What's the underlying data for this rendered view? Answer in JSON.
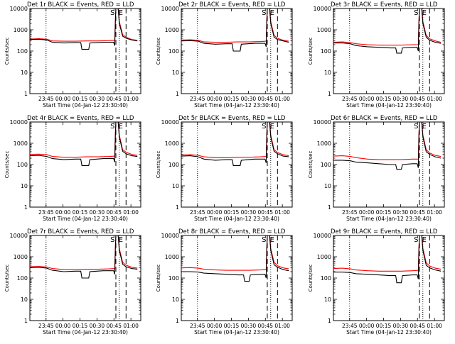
{
  "figure": {
    "xlabel": "Start Time (04-Jan-12 23:30:40)",
    "ylabel": "Counts/sec",
    "ytick_labels": [
      "1",
      "10",
      "100",
      "1000",
      "10000"
    ],
    "xtick_labels": [
      "23:45",
      "00:00",
      "00:15",
      "00:30",
      "00:45",
      "01:00"
    ],
    "colors": {
      "events": "#000000",
      "lld": "#ff0000",
      "axes": "#000000",
      "background": "#ffffff"
    },
    "legend_note": "BLACK = Events, RED = LLD"
  },
  "chart_data": [
    {
      "type": "line",
      "title": "Det 1r BLACK = Events, RED = LLD",
      "annotation": "S E",
      "y_scale": "log",
      "ylim": [
        1,
        10000
      ],
      "x_minutes_since_start": [
        14.3,
        29.3,
        44.3,
        59.3,
        74.3,
        89.3
      ],
      "vlines_dotted": [
        14.3,
        79
      ],
      "vlines_dashed": [
        76,
        85
      ],
      "series": [
        {
          "name": "Events",
          "color": "#000000",
          "x": [
            0,
            8,
            15,
            20,
            30,
            40,
            45,
            46,
            52,
            53,
            65,
            74,
            75,
            75.5,
            76,
            78,
            79,
            82,
            85,
            90,
            95
          ],
          "y": [
            350,
            360,
            330,
            260,
            240,
            250,
            250,
            120,
            120,
            240,
            260,
            260,
            180,
            2000,
            10000,
            10000,
            2000,
            500,
            400,
            330,
            300
          ]
        },
        {
          "name": "LLD",
          "color": "#ff0000",
          "x": [
            0,
            8,
            15,
            20,
            30,
            40,
            50,
            60,
            70,
            75,
            75.5,
            76,
            78,
            79,
            82,
            85,
            90,
            95
          ],
          "y": [
            370,
            380,
            360,
            300,
            290,
            290,
            300,
            300,
            310,
            320,
            2500,
            10000,
            10000,
            2500,
            600,
            450,
            350,
            320
          ]
        }
      ]
    },
    {
      "type": "line",
      "title": "Det 2r BLACK = Events, RED = LLD",
      "annotation": "S E",
      "y_scale": "log",
      "ylim": [
        1,
        10000
      ],
      "x_minutes_since_start": [
        14.3,
        29.3,
        44.3,
        59.3,
        74.3,
        89.3
      ],
      "vlines_dotted": [
        14.3,
        79
      ],
      "vlines_dashed": [
        76,
        85
      ],
      "series": [
        {
          "name": "Events",
          "color": "#000000",
          "x": [
            0,
            8,
            15,
            20,
            30,
            40,
            45,
            46,
            52,
            53,
            65,
            74,
            75,
            75.5,
            76,
            78,
            79,
            82,
            85,
            90,
            95
          ],
          "y": [
            300,
            310,
            290,
            230,
            210,
            220,
            220,
            100,
            100,
            210,
            230,
            230,
            160,
            2000,
            10000,
            10000,
            2000,
            450,
            350,
            300,
            260
          ]
        },
        {
          "name": "LLD",
          "color": "#ff0000",
          "x": [
            0,
            8,
            15,
            20,
            30,
            40,
            50,
            60,
            70,
            75,
            75.5,
            76,
            78,
            79,
            82,
            85,
            90,
            95
          ],
          "y": [
            330,
            340,
            320,
            270,
            260,
            260,
            270,
            270,
            280,
            290,
            2500,
            10000,
            10000,
            2500,
            550,
            400,
            320,
            290
          ]
        }
      ]
    },
    {
      "type": "line",
      "title": "Det 3r BLACK = Events, RED = LLD",
      "annotation": "S E",
      "y_scale": "log",
      "ylim": [
        1,
        10000
      ],
      "x_minutes_since_start": [
        14.3,
        29.3,
        44.3,
        59.3,
        74.3,
        89.3
      ],
      "vlines_dotted": [
        14.3,
        79
      ],
      "vlines_dashed": [
        76,
        85
      ],
      "series": [
        {
          "name": "Events",
          "color": "#000000",
          "x": [
            0,
            8,
            15,
            20,
            30,
            40,
            50,
            55,
            56,
            60,
            61,
            70,
            74,
            75,
            75.5,
            76,
            78,
            79,
            82,
            85,
            90,
            95
          ],
          "y": [
            240,
            240,
            220,
            180,
            160,
            150,
            140,
            140,
            80,
            80,
            140,
            150,
            150,
            100,
            2000,
            10000,
            10000,
            2000,
            450,
            320,
            260,
            230
          ]
        },
        {
          "name": "LLD",
          "color": "#ff0000",
          "x": [
            0,
            8,
            15,
            20,
            30,
            40,
            50,
            60,
            70,
            75,
            75.5,
            76,
            78,
            79,
            82,
            85,
            90,
            95
          ],
          "y": [
            260,
            270,
            250,
            220,
            200,
            190,
            190,
            190,
            200,
            200,
            2500,
            10000,
            10000,
            2500,
            550,
            380,
            300,
            260
          ]
        }
      ]
    },
    {
      "type": "line",
      "title": "Det 4r BLACK = Events, RED = LLD",
      "annotation": "S E",
      "y_scale": "log",
      "ylim": [
        1,
        10000
      ],
      "x_minutes_since_start": [
        14.3,
        29.3,
        44.3,
        59.3,
        74.3,
        89.3
      ],
      "vlines_dotted": [
        14.3,
        79
      ],
      "vlines_dashed": [
        76,
        85
      ],
      "series": [
        {
          "name": "Events",
          "color": "#000000",
          "x": [
            0,
            8,
            15,
            20,
            30,
            40,
            45,
            46,
            52,
            53,
            65,
            74,
            75,
            75.5,
            76,
            78,
            79,
            82,
            85,
            90,
            95
          ],
          "y": [
            260,
            270,
            240,
            190,
            170,
            180,
            180,
            90,
            90,
            170,
            190,
            190,
            130,
            2000,
            10000,
            10000,
            2000,
            420,
            320,
            260,
            240
          ]
        },
        {
          "name": "LLD",
          "color": "#ff0000",
          "x": [
            0,
            8,
            15,
            20,
            30,
            40,
            50,
            60,
            70,
            75,
            75.5,
            76,
            78,
            79,
            82,
            85,
            90,
            95
          ],
          "y": [
            300,
            310,
            290,
            240,
            220,
            220,
            230,
            230,
            240,
            250,
            2500,
            10000,
            10000,
            2500,
            500,
            380,
            300,
            270
          ]
        }
      ]
    },
    {
      "type": "line",
      "title": "Det 5r BLACK = Events, RED = LLD",
      "annotation": "S E",
      "y_scale": "log",
      "ylim": [
        1,
        10000
      ],
      "x_minutes_since_start": [
        14.3,
        29.3,
        44.3,
        59.3,
        74.3,
        89.3
      ],
      "vlines_dotted": [
        14.3,
        79
      ],
      "vlines_dashed": [
        76,
        85
      ],
      "series": [
        {
          "name": "Events",
          "color": "#000000",
          "x": [
            0,
            8,
            15,
            20,
            30,
            40,
            45,
            46,
            52,
            53,
            65,
            74,
            75,
            75.5,
            76,
            78,
            79,
            82,
            85,
            90,
            95
          ],
          "y": [
            250,
            260,
            230,
            180,
            160,
            170,
            170,
            90,
            90,
            160,
            180,
            180,
            120,
            2000,
            10000,
            10000,
            2000,
            420,
            320,
            250,
            230
          ]
        },
        {
          "name": "LLD",
          "color": "#ff0000",
          "x": [
            0,
            8,
            15,
            20,
            30,
            40,
            50,
            60,
            70,
            75,
            75.5,
            76,
            78,
            79,
            82,
            85,
            90,
            95
          ],
          "y": [
            280,
            290,
            270,
            230,
            210,
            210,
            220,
            220,
            230,
            240,
            2500,
            10000,
            10000,
            2500,
            500,
            370,
            290,
            260
          ]
        }
      ]
    },
    {
      "type": "line",
      "title": "Det 6r BLACK = Events, RED = LLD",
      "annotation": "S E",
      "y_scale": "log",
      "ylim": [
        1,
        10000
      ],
      "x_minutes_since_start": [
        14.3,
        29.3,
        44.3,
        59.3,
        74.3,
        89.3
      ],
      "vlines_dotted": [
        14.3,
        79
      ],
      "vlines_dashed": [
        76,
        85
      ],
      "series": [
        {
          "name": "Events",
          "color": "#000000",
          "x": [
            0,
            8,
            15,
            20,
            30,
            40,
            50,
            55,
            56,
            60,
            61,
            70,
            74,
            75,
            75.5,
            76,
            78,
            79,
            82,
            85,
            90,
            95
          ],
          "y": [
            160,
            160,
            150,
            130,
            120,
            110,
            100,
            100,
            60,
            60,
            100,
            110,
            110,
            70,
            2000,
            10000,
            10000,
            2000,
            400,
            300,
            230,
            200
          ]
        },
        {
          "name": "LLD",
          "color": "#ff0000",
          "x": [
            0,
            8,
            15,
            20,
            30,
            40,
            50,
            60,
            70,
            75,
            75.5,
            76,
            78,
            79,
            82,
            85,
            90,
            95
          ],
          "y": [
            250,
            260,
            240,
            210,
            180,
            170,
            170,
            170,
            180,
            180,
            2500,
            10000,
            10000,
            2500,
            500,
            350,
            270,
            240
          ]
        }
      ]
    },
    {
      "type": "line",
      "title": "Det 7r BLACK = Events, RED = LLD",
      "annotation": "S E",
      "y_scale": "log",
      "ylim": [
        1,
        10000
      ],
      "x_minutes_since_start": [
        14.3,
        29.3,
        44.3,
        59.3,
        74.3,
        89.3
      ],
      "vlines_dotted": [
        14.3,
        79
      ],
      "vlines_dashed": [
        76,
        85
      ],
      "series": [
        {
          "name": "Events",
          "color": "#000000",
          "x": [
            0,
            8,
            15,
            20,
            30,
            40,
            45,
            46,
            52,
            53,
            65,
            74,
            75,
            75.5,
            76,
            78,
            79,
            82,
            85,
            90,
            95
          ],
          "y": [
            310,
            320,
            290,
            230,
            200,
            210,
            210,
            100,
            100,
            200,
            220,
            220,
            150,
            2000,
            10000,
            10000,
            2000,
            450,
            340,
            280,
            260
          ]
        },
        {
          "name": "LLD",
          "color": "#ff0000",
          "x": [
            0,
            8,
            15,
            20,
            30,
            40,
            50,
            60,
            70,
            75,
            75.5,
            76,
            78,
            79,
            82,
            85,
            90,
            95
          ],
          "y": [
            340,
            350,
            330,
            280,
            250,
            250,
            260,
            260,
            270,
            280,
            2500,
            10000,
            10000,
            2500,
            550,
            400,
            320,
            290
          ]
        }
      ]
    },
    {
      "type": "line",
      "title": "Det 8r BLACK = Events, RED = LLD",
      "annotation": "S E",
      "y_scale": "log",
      "ylim": [
        1,
        10000
      ],
      "x_minutes_since_start": [
        14.3,
        29.3,
        44.3,
        59.3,
        74.3,
        89.3
      ],
      "vlines_dotted": [
        14.3,
        79
      ],
      "vlines_dashed": [
        76,
        85
      ],
      "series": [
        {
          "name": "Events",
          "color": "#000000",
          "x": [
            0,
            8,
            15,
            20,
            30,
            40,
            50,
            55,
            56,
            60,
            61,
            70,
            74,
            75,
            75.5,
            76,
            78,
            79,
            82,
            85,
            90,
            95
          ],
          "y": [
            200,
            200,
            190,
            170,
            160,
            150,
            140,
            140,
            70,
            70,
            140,
            150,
            150,
            100,
            2000,
            10000,
            10000,
            2000,
            420,
            320,
            250,
            220
          ]
        },
        {
          "name": "LLD",
          "color": "#ff0000",
          "x": [
            0,
            8,
            15,
            20,
            30,
            40,
            50,
            60,
            70,
            75,
            75.5,
            76,
            78,
            79,
            82,
            85,
            90,
            95
          ],
          "y": [
            300,
            310,
            290,
            260,
            240,
            230,
            230,
            230,
            240,
            250,
            2500,
            10000,
            10000,
            2500,
            550,
            380,
            300,
            270
          ]
        }
      ]
    },
    {
      "type": "line",
      "title": "Det 9r BLACK = Events, RED = LLD",
      "annotation": "S E",
      "y_scale": "log",
      "ylim": [
        1,
        10000
      ],
      "x_minutes_since_start": [
        14.3,
        29.3,
        44.3,
        59.3,
        74.3,
        89.3
      ],
      "vlines_dotted": [
        14.3,
        79
      ],
      "vlines_dashed": [
        76,
        85
      ],
      "series": [
        {
          "name": "Events",
          "color": "#000000",
          "x": [
            0,
            8,
            15,
            20,
            30,
            40,
            50,
            55,
            56,
            60,
            61,
            70,
            74,
            75,
            75.5,
            76,
            78,
            79,
            82,
            85,
            90,
            95
          ],
          "y": [
            190,
            190,
            180,
            160,
            150,
            140,
            130,
            130,
            60,
            60,
            130,
            140,
            140,
            90,
            2000,
            10000,
            10000,
            2000,
            400,
            300,
            240,
            210
          ]
        },
        {
          "name": "LLD",
          "color": "#ff0000",
          "x": [
            0,
            8,
            15,
            20,
            30,
            40,
            50,
            60,
            70,
            75,
            75.5,
            76,
            78,
            79,
            82,
            85,
            90,
            95
          ],
          "y": [
            280,
            290,
            270,
            240,
            220,
            210,
            210,
            210,
            220,
            230,
            2500,
            10000,
            10000,
            2500,
            520,
            370,
            290,
            260
          ]
        }
      ]
    }
  ]
}
